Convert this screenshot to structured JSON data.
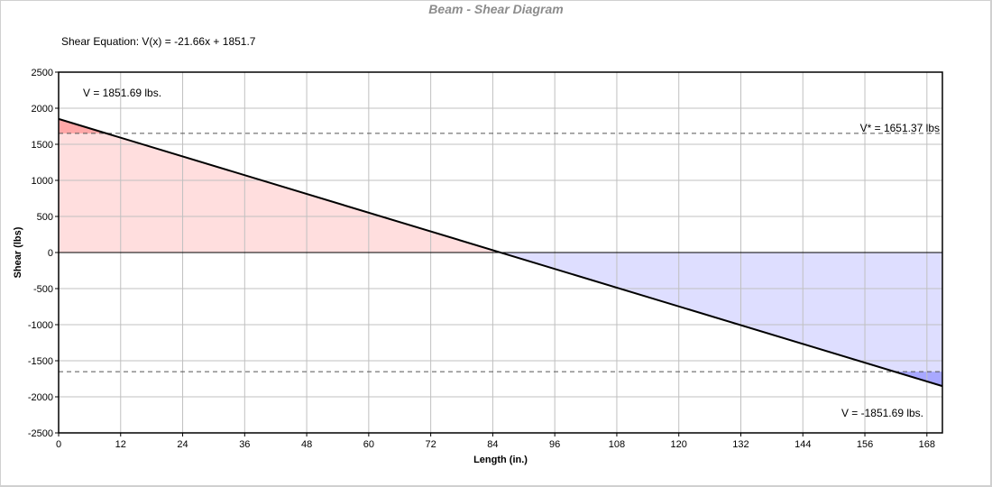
{
  "chart_data": {
    "type": "area",
    "title": "Beam - Shear Diagram",
    "subtitle": "Shear Equation:  V(x) = -21.66x + 1851.7",
    "xlabel": "Length (in.)",
    "ylabel": "Shear (lbs)",
    "xlim": [
      0,
      171
    ],
    "ylim": [
      -2500,
      2500
    ],
    "x_ticks": [
      0,
      12,
      24,
      36,
      48,
      60,
      72,
      84,
      96,
      108,
      120,
      132,
      144,
      156,
      168
    ],
    "y_ticks": [
      2500,
      2000,
      1500,
      1000,
      500,
      0,
      -500,
      -1000,
      -1500,
      -2000,
      -2500
    ],
    "grid": true,
    "series": [
      {
        "x": [
          0,
          171
        ],
        "y": [
          1851.69,
          -1851.69
        ]
      }
    ],
    "reference_lines": [
      1651.37,
      -1651.37
    ],
    "annotations": {
      "v_start": "V = 1851.69 lbs.",
      "v_star": "V* = 1651.37 lbs",
      "v_end": "V = -1851.69 lbs."
    },
    "colors": {
      "positive_fill": "#ffdede",
      "positive_exceed_fill": "#ffa8a8",
      "negative_fill": "#dedeff",
      "negative_exceed_fill": "#a8a8ff",
      "line": "#000000",
      "grid": "#c0c0c0"
    }
  }
}
